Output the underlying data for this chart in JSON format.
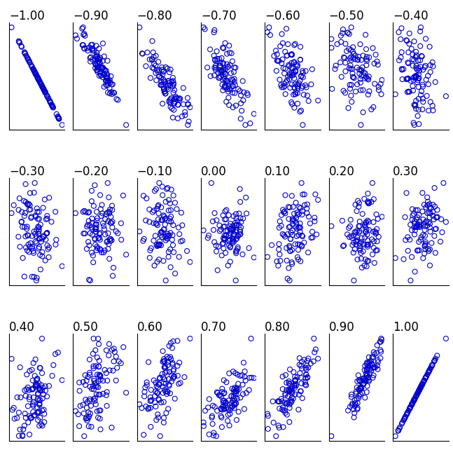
{
  "correlations": [
    -1.0,
    -0.9,
    -0.8,
    -0.7,
    -0.6,
    -0.5,
    -0.4,
    -0.3,
    -0.2,
    -0.1,
    0.0,
    0.1,
    0.2,
    0.3,
    0.4,
    0.5,
    0.6,
    0.7,
    0.8,
    0.9,
    1.0
  ],
  "n_points": 100,
  "marker_color": "#0000cc",
  "marker_size": 5,
  "marker_linewidth": 0.8,
  "marker_facecolor": "none",
  "rows": 3,
  "cols": 7,
  "figsize": [
    6.47,
    6.42
  ],
  "dpi": 100,
  "seed": 42,
  "title_fontsize": 12,
  "subplot_hspace": 0.45,
  "subplot_wspace": 0.15
}
